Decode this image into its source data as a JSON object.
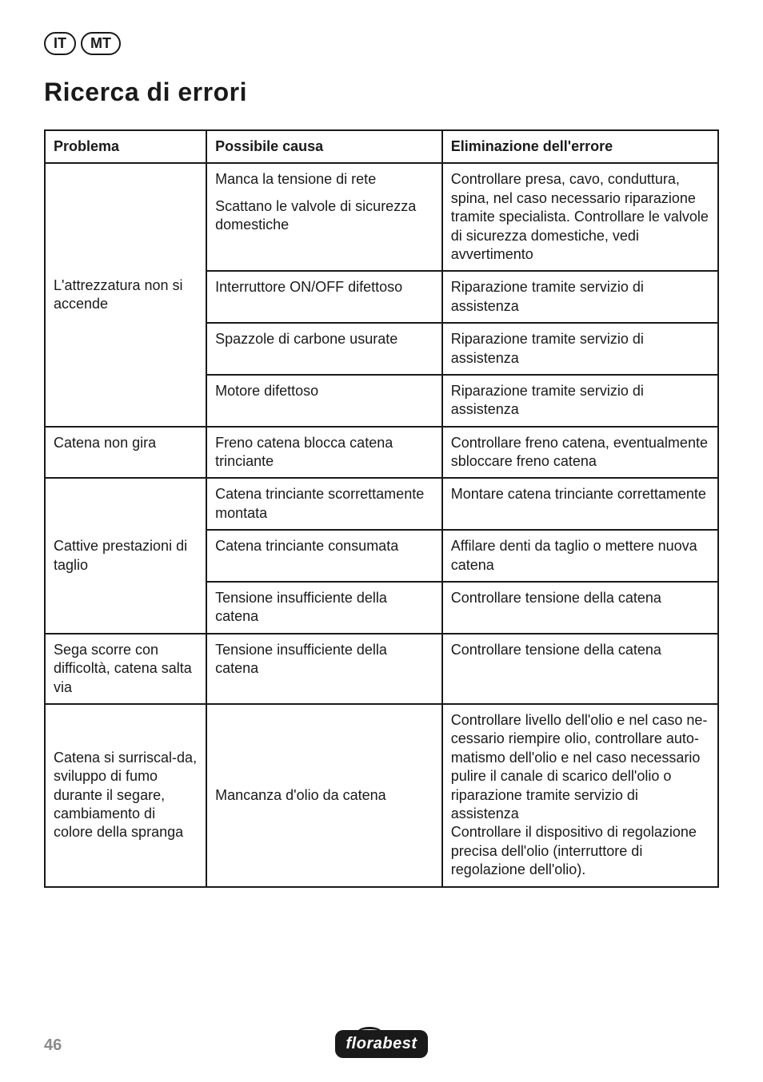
{
  "lang_badges": [
    "IT",
    "MT"
  ],
  "title": "Ricerca di errori",
  "headers": {
    "problem": "Problema",
    "cause": "Possibile causa",
    "fix": "Eliminazione dell'errore"
  },
  "rows": {
    "r1": {
      "problem": "L'attrezzatura non si accende",
      "cause1a": "Manca la tensione di rete",
      "cause1b": "Scattano le valvole di sicurezza domestiche",
      "fix1": "Controllare presa, cavo, conduttura, spina, nel caso necessario riparazione tramite specialista. Controllare le valvole di sicurezza domestiche, vedi avvertimento",
      "cause2": "Interruttore ON/OFF difettoso",
      "fix2": "Riparazione tramite servizio di assistenza",
      "cause3": "Spazzole di carbone usurate",
      "fix3": "Riparazione tramite servizio di assistenza",
      "cause4": "Motore difettoso",
      "fix4": "Riparazione tramite servizio di assistenza"
    },
    "r2": {
      "problem": "Catena non gira",
      "cause": "Freno catena blocca catena trinciante",
      "fix": "Controllare freno catena, eventualmente sbloccare freno catena"
    },
    "r3": {
      "problem": "Cattive prestazioni di taglio",
      "cause1": "Catena trinciante scorrettamente montata",
      "fix1": "Montare catena trinciante correttamente",
      "cause2": "Catena trinciante consumata",
      "fix2": "Affilare denti da taglio o mettere nuova catena",
      "cause3": "Tensione insufficiente della catena",
      "fix3": "Controllare tensione della catena"
    },
    "r4": {
      "problem": "Sega scorre con difficoltà, catena salta via",
      "cause": "Tensione insufficiente della catena",
      "fix": "Controllare tensione della catena"
    },
    "r5": {
      "problem": "Catena si surriscal-da, sviluppo di fumo durante il segare, cambiamento di colore della spranga",
      "cause": "Mancanza d'olio da catena",
      "fix": "Controllare livello dell'olio e nel caso ne-cessario riempire olio, controllare auto-matismo dell'olio e nel caso necessario pulire il canale di scarico dell'olio o riparazione tramite servizio di assistenza\nControllare il dispositivo di regolazione precisa dell'olio (interruttore di regolazione dell'olio)."
    }
  },
  "page_number": "46",
  "logo_text": "florabest"
}
